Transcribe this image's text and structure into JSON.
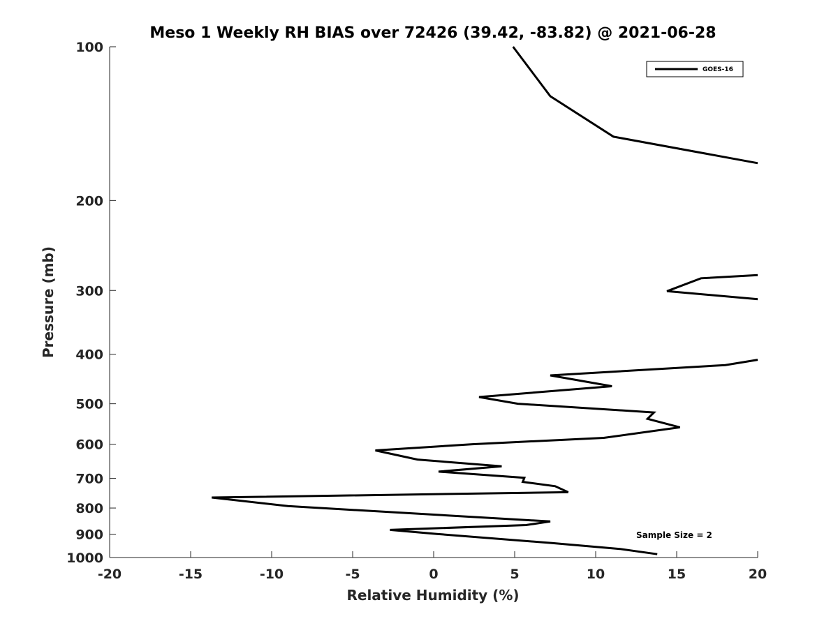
{
  "chart_data": {
    "type": "line",
    "title": "Meso 1 Weekly RH BIAS over 72426 (39.42, -83.82) @ 2021-06-28",
    "xlabel": "Relative Humidity (%)",
    "ylabel": "Pressure (mb)",
    "xlim": [
      -20,
      20
    ],
    "ylim": [
      1000,
      100
    ],
    "y_scale": "log",
    "x_ticks": [
      "-20",
      "-15",
      "-10",
      "-5",
      "0",
      "5",
      "10",
      "15",
      "20"
    ],
    "y_ticks": [
      "100",
      "200",
      "300",
      "400",
      "500",
      "600",
      "700",
      "800",
      "900",
      "1000"
    ],
    "grid": false,
    "legend_position": "top-right",
    "annotation": "Sample Size = 2",
    "series": [
      {
        "name": "GOES-16",
        "color": "#000000",
        "segments": [
          [
            [
              4.9,
              100
            ],
            [
              7.2,
              125
            ],
            [
              11.1,
              150
            ],
            [
              20.0,
              169
            ]
          ],
          [
            [
              20.0,
              280
            ],
            [
              16.5,
              284
            ],
            [
              14.4,
              301
            ],
            [
              20.0,
              312
            ]
          ],
          [
            [
              20.0,
              410
            ],
            [
              18.0,
              420
            ],
            [
              7.2,
              440
            ],
            [
              11.0,
              462
            ],
            [
              2.8,
              485
            ],
            [
              5.2,
              500
            ],
            [
              13.6,
              520
            ],
            [
              13.2,
              535
            ],
            [
              15.2,
              556
            ],
            [
              10.5,
              583
            ],
            [
              2.4,
              600
            ],
            [
              -3.6,
              617
            ],
            [
              -1.0,
              643
            ],
            [
              4.2,
              663
            ],
            [
              0.3,
              679
            ],
            [
              5.6,
              698
            ],
            [
              5.5,
              711
            ],
            [
              7.5,
              725
            ],
            [
              8.3,
              745
            ],
            [
              -13.7,
              763
            ],
            [
              -9.0,
              793
            ],
            [
              4.2,
              839
            ],
            [
              7.2,
              850
            ],
            [
              5.7,
              864
            ],
            [
              -2.7,
              883
            ],
            [
              0.2,
              899
            ],
            [
              7.3,
              937
            ],
            [
              11.5,
              962
            ],
            [
              13.8,
              985
            ]
          ]
        ]
      }
    ]
  }
}
